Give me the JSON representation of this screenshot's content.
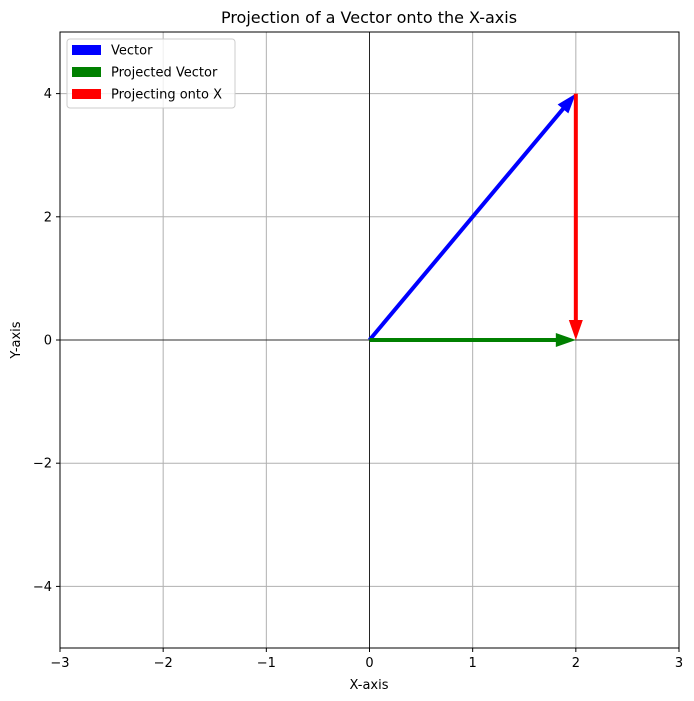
{
  "chart_data": {
    "type": "vector-plot",
    "title": "Projection of a Vector onto the X-axis",
    "xlabel": "X-axis",
    "ylabel": "Y-axis",
    "xlim": [
      -3,
      3
    ],
    "ylim": [
      -5,
      5
    ],
    "xticks": [
      -3,
      -2,
      -1,
      0,
      1,
      2,
      3
    ],
    "yticks": [
      -4,
      -2,
      0,
      2,
      4
    ],
    "xtick_labels": [
      "−3",
      "−2",
      "−1",
      "0",
      "1",
      "2",
      "3"
    ],
    "ytick_labels": [
      "−4",
      "−2",
      "0",
      "2",
      "4"
    ],
    "grid": true,
    "reference_lines": {
      "x": 0,
      "y": 0
    },
    "legend_position": "top-left",
    "vectors": [
      {
        "name": "Vector",
        "color": "#0000ff",
        "start": [
          0,
          0
        ],
        "end": [
          2,
          4
        ]
      },
      {
        "name": "Projected Vector",
        "color": "#008000",
        "start": [
          0,
          0
        ],
        "end": [
          2,
          0
        ]
      },
      {
        "name": "Projecting onto X",
        "color": "#ff0000",
        "start": [
          2,
          4
        ],
        "end": [
          2,
          0
        ]
      }
    ]
  }
}
